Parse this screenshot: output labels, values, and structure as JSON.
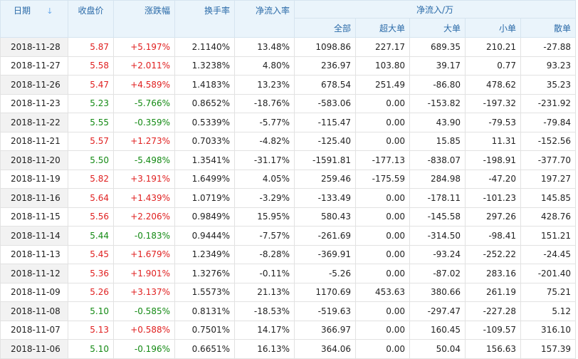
{
  "headers": {
    "date": "日期",
    "close": "收盘价",
    "change": "涨跌幅",
    "turnover": "换手率",
    "netflow_ratio": "净流入率",
    "netflow_group": "净流入/万",
    "all": "全部",
    "super_large": "超大单",
    "large": "大单",
    "small": "小单",
    "retail": "散单",
    "sort_icon": "sort-down-arrow-icon"
  },
  "colors": {
    "up": "#e02020",
    "down": "#148a14",
    "header_bg": "#eaf4fb",
    "header_text": "#2a6aa8"
  },
  "rows": [
    {
      "date": "2018-11-28",
      "close": "5.87",
      "change": "+5.197%",
      "turnover": "2.1140%",
      "ratio": "13.48%",
      "all": "1098.86",
      "super": "227.17",
      "large": "689.35",
      "small": "210.21",
      "retail": "-27.88",
      "dir": "up"
    },
    {
      "date": "2018-11-27",
      "close": "5.58",
      "change": "+2.011%",
      "turnover": "1.3238%",
      "ratio": "4.80%",
      "all": "236.97",
      "super": "103.80",
      "large": "39.17",
      "small": "0.77",
      "retail": "93.23",
      "dir": "up"
    },
    {
      "date": "2018-11-26",
      "close": "5.47",
      "change": "+4.589%",
      "turnover": "1.4183%",
      "ratio": "13.23%",
      "all": "678.54",
      "super": "251.49",
      "large": "-86.80",
      "small": "478.62",
      "retail": "35.23",
      "dir": "up"
    },
    {
      "date": "2018-11-23",
      "close": "5.23",
      "change": "-5.766%",
      "turnover": "0.8652%",
      "ratio": "-18.76%",
      "all": "-583.06",
      "super": "0.00",
      "large": "-153.82",
      "small": "-197.32",
      "retail": "-231.92",
      "dir": "down"
    },
    {
      "date": "2018-11-22",
      "close": "5.55",
      "change": "-0.359%",
      "turnover": "0.5339%",
      "ratio": "-5.77%",
      "all": "-115.47",
      "super": "0.00",
      "large": "43.90",
      "small": "-79.53",
      "retail": "-79.84",
      "dir": "down"
    },
    {
      "date": "2018-11-21",
      "close": "5.57",
      "change": "+1.273%",
      "turnover": "0.7033%",
      "ratio": "-4.82%",
      "all": "-125.40",
      "super": "0.00",
      "large": "15.85",
      "small": "11.31",
      "retail": "-152.56",
      "dir": "up"
    },
    {
      "date": "2018-11-20",
      "close": "5.50",
      "change": "-5.498%",
      "turnover": "1.3541%",
      "ratio": "-31.17%",
      "all": "-1591.81",
      "super": "-177.13",
      "large": "-838.07",
      "small": "-198.91",
      "retail": "-377.70",
      "dir": "down"
    },
    {
      "date": "2018-11-19",
      "close": "5.82",
      "change": "+3.191%",
      "turnover": "1.6499%",
      "ratio": "4.05%",
      "all": "259.46",
      "super": "-175.59",
      "large": "284.98",
      "small": "-47.20",
      "retail": "197.27",
      "dir": "up"
    },
    {
      "date": "2018-11-16",
      "close": "5.64",
      "change": "+1.439%",
      "turnover": "1.0719%",
      "ratio": "-3.29%",
      "all": "-133.49",
      "super": "0.00",
      "large": "-178.11",
      "small": "-101.23",
      "retail": "145.85",
      "dir": "up"
    },
    {
      "date": "2018-11-15",
      "close": "5.56",
      "change": "+2.206%",
      "turnover": "0.9849%",
      "ratio": "15.95%",
      "all": "580.43",
      "super": "0.00",
      "large": "-145.58",
      "small": "297.26",
      "retail": "428.76",
      "dir": "up"
    },
    {
      "date": "2018-11-14",
      "close": "5.44",
      "change": "-0.183%",
      "turnover": "0.9444%",
      "ratio": "-7.57%",
      "all": "-261.69",
      "super": "0.00",
      "large": "-314.50",
      "small": "-98.41",
      "retail": "151.21",
      "dir": "down"
    },
    {
      "date": "2018-11-13",
      "close": "5.45",
      "change": "+1.679%",
      "turnover": "1.2349%",
      "ratio": "-8.28%",
      "all": "-369.91",
      "super": "0.00",
      "large": "-93.24",
      "small": "-252.22",
      "retail": "-24.45",
      "dir": "up"
    },
    {
      "date": "2018-11-12",
      "close": "5.36",
      "change": "+1.901%",
      "turnover": "1.3276%",
      "ratio": "-0.11%",
      "all": "-5.26",
      "super": "0.00",
      "large": "-87.02",
      "small": "283.16",
      "retail": "-201.40",
      "dir": "up"
    },
    {
      "date": "2018-11-09",
      "close": "5.26",
      "change": "+3.137%",
      "turnover": "1.5573%",
      "ratio": "21.13%",
      "all": "1170.69",
      "super": "453.63",
      "large": "380.66",
      "small": "261.19",
      "retail": "75.21",
      "dir": "up"
    },
    {
      "date": "2018-11-08",
      "close": "5.10",
      "change": "-0.585%",
      "turnover": "0.8131%",
      "ratio": "-18.53%",
      "all": "-519.63",
      "super": "0.00",
      "large": "-297.47",
      "small": "-227.28",
      "retail": "5.12",
      "dir": "down"
    },
    {
      "date": "2018-11-07",
      "close": "5.13",
      "change": "+0.588%",
      "turnover": "0.7501%",
      "ratio": "14.17%",
      "all": "366.97",
      "super": "0.00",
      "large": "160.45",
      "small": "-109.57",
      "retail": "316.10",
      "dir": "up"
    },
    {
      "date": "2018-11-06",
      "close": "5.10",
      "change": "-0.196%",
      "turnover": "0.6651%",
      "ratio": "16.13%",
      "all": "364.06",
      "super": "0.00",
      "large": "50.04",
      "small": "156.63",
      "retail": "157.39",
      "dir": "down"
    }
  ]
}
